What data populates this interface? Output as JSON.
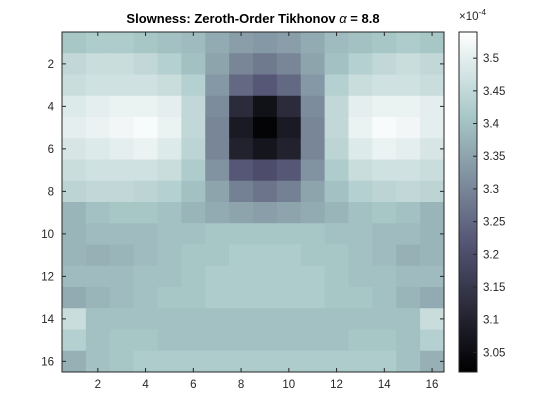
{
  "chart_data": {
    "type": "heatmap",
    "title": "Slowness: Zeroth-Order Tikhonov ",
    "title_symbol": "α",
    "title_suffix": " = 8.8",
    "xlabel": "",
    "ylabel": "",
    "x_ticks": [
      2,
      4,
      6,
      8,
      10,
      12,
      14,
      16
    ],
    "y_ticks": [
      2,
      4,
      6,
      8,
      10,
      12,
      14,
      16
    ],
    "x_range": [
      0.5,
      16.5
    ],
    "y_range": [
      0.5,
      16.5
    ],
    "y_direction": "reverse",
    "colormap": "bone",
    "colorbar": {
      "range": [
        3.02,
        3.54
      ],
      "ticks": [
        "3.05",
        "3.1",
        "3.15",
        "3.2",
        "3.25",
        "3.3",
        "3.35",
        "3.4",
        "3.45",
        "3.5"
      ],
      "tick_values": [
        3.05,
        3.1,
        3.15,
        3.2,
        3.25,
        3.3,
        3.35,
        3.4,
        3.45,
        3.5
      ],
      "exponent_base": "×10",
      "exponent_power": "-4"
    },
    "values": [
      [
        3.41,
        3.42,
        3.42,
        3.41,
        3.4,
        3.39,
        3.36,
        3.34,
        3.33,
        3.34,
        3.36,
        3.39,
        3.4,
        3.41,
        3.42,
        3.41
      ],
      [
        3.45,
        3.46,
        3.46,
        3.45,
        3.43,
        3.4,
        3.35,
        3.3,
        3.28,
        3.3,
        3.35,
        3.4,
        3.43,
        3.45,
        3.46,
        3.45
      ],
      [
        3.46,
        3.47,
        3.47,
        3.47,
        3.46,
        3.43,
        3.33,
        3.25,
        3.22,
        3.25,
        3.33,
        3.43,
        3.46,
        3.47,
        3.47,
        3.46
      ],
      [
        3.49,
        3.5,
        3.51,
        3.51,
        3.5,
        3.45,
        3.31,
        3.12,
        3.06,
        3.12,
        3.31,
        3.45,
        3.5,
        3.51,
        3.51,
        3.5
      ],
      [
        3.5,
        3.51,
        3.52,
        3.53,
        3.51,
        3.45,
        3.3,
        3.08,
        3.03,
        3.08,
        3.3,
        3.45,
        3.51,
        3.53,
        3.52,
        3.5
      ],
      [
        3.48,
        3.49,
        3.5,
        3.51,
        3.49,
        3.44,
        3.3,
        3.1,
        3.07,
        3.1,
        3.3,
        3.44,
        3.49,
        3.51,
        3.5,
        3.48
      ],
      [
        3.46,
        3.47,
        3.47,
        3.47,
        3.46,
        3.42,
        3.32,
        3.22,
        3.2,
        3.22,
        3.32,
        3.42,
        3.46,
        3.47,
        3.47,
        3.46
      ],
      [
        3.44,
        3.45,
        3.45,
        3.44,
        3.43,
        3.4,
        3.35,
        3.29,
        3.27,
        3.29,
        3.35,
        3.4,
        3.43,
        3.44,
        3.45,
        3.44
      ],
      [
        3.38,
        3.4,
        3.41,
        3.41,
        3.4,
        3.38,
        3.36,
        3.35,
        3.34,
        3.35,
        3.36,
        3.38,
        3.4,
        3.41,
        3.4,
        3.38
      ],
      [
        3.38,
        3.39,
        3.39,
        3.39,
        3.4,
        3.4,
        3.41,
        3.41,
        3.41,
        3.41,
        3.41,
        3.4,
        3.4,
        3.39,
        3.39,
        3.38
      ],
      [
        3.38,
        3.37,
        3.38,
        3.39,
        3.4,
        3.41,
        3.41,
        3.42,
        3.42,
        3.42,
        3.41,
        3.41,
        3.4,
        3.39,
        3.37,
        3.38
      ],
      [
        3.39,
        3.39,
        3.39,
        3.4,
        3.4,
        3.41,
        3.42,
        3.42,
        3.42,
        3.42,
        3.42,
        3.41,
        3.4,
        3.4,
        3.39,
        3.39
      ],
      [
        3.36,
        3.38,
        3.39,
        3.4,
        3.41,
        3.41,
        3.42,
        3.42,
        3.42,
        3.42,
        3.42,
        3.41,
        3.41,
        3.4,
        3.38,
        3.36
      ],
      [
        3.46,
        3.4,
        3.4,
        3.4,
        3.4,
        3.4,
        3.4,
        3.4,
        3.4,
        3.4,
        3.4,
        3.4,
        3.4,
        3.4,
        3.4,
        3.46
      ],
      [
        3.43,
        3.4,
        3.41,
        3.41,
        3.4,
        3.4,
        3.4,
        3.4,
        3.4,
        3.4,
        3.4,
        3.4,
        3.41,
        3.41,
        3.4,
        3.43
      ],
      [
        3.37,
        3.4,
        3.41,
        3.42,
        3.42,
        3.42,
        3.42,
        3.42,
        3.42,
        3.42,
        3.42,
        3.42,
        3.42,
        3.42,
        3.4,
        3.37
      ]
    ]
  }
}
